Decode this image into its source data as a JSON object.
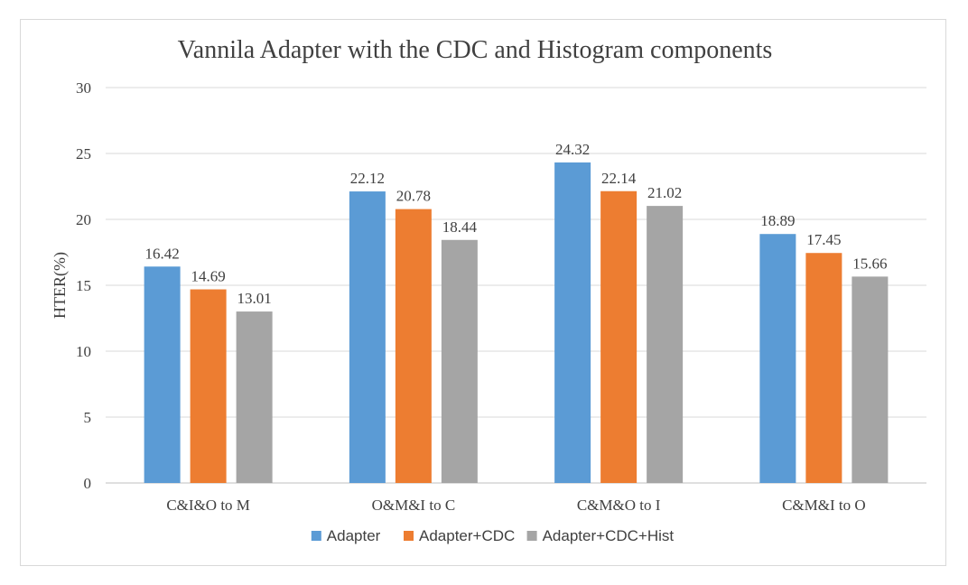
{
  "chart_data": {
    "type": "bar",
    "title": "Vannila Adapter with the CDC and Histogram components",
    "xlabel": "",
    "ylabel": "HTER(%)",
    "ylim": [
      0,
      30
    ],
    "yticks": [
      0,
      5,
      10,
      15,
      20,
      25,
      30
    ],
    "grid": true,
    "legend_position": "bottom",
    "categories": [
      "C&I&O to M",
      "O&M&I to C",
      "C&M&O to I",
      "C&M&I to O"
    ],
    "series": [
      {
        "name": "Adapter",
        "color": "#5b9bd5",
        "values": [
          16.42,
          22.12,
          24.32,
          18.89
        ]
      },
      {
        "name": "Adapter+CDC",
        "color": "#ed7d31",
        "values": [
          14.69,
          20.78,
          22.14,
          17.45
        ]
      },
      {
        "name": "Adapter+CDC+Hist",
        "color": "#a5a5a5",
        "values": [
          13.01,
          18.44,
          21.02,
          15.66
        ]
      }
    ]
  }
}
